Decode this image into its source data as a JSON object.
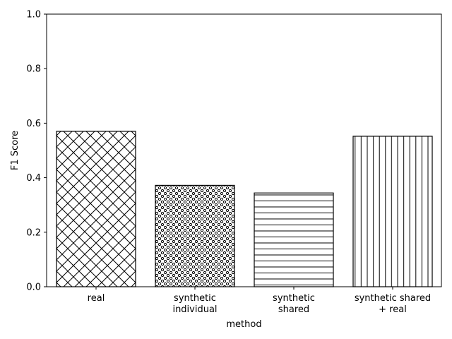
{
  "chart_data": {
    "type": "bar",
    "categories": [
      [
        "real"
      ],
      [
        "synthetic",
        "individual"
      ],
      [
        "synthetic",
        "shared"
      ],
      [
        "synthetic shared",
        "+ real"
      ]
    ],
    "values": [
      0.57,
      0.372,
      0.344,
      0.552
    ],
    "hatches": [
      "cross-diagonal",
      "dots",
      "horizontal",
      "vertical"
    ],
    "xlabel": "method",
    "ylabel": "F1 Score",
    "ylim": [
      0,
      1.0
    ],
    "yticks": [
      "0.0",
      "0.2",
      "0.4",
      "0.6",
      "0.8",
      "1.0"
    ],
    "grid": false,
    "colors": {
      "bar_fill": "#ffffff",
      "bar_edge": "#000000"
    }
  }
}
